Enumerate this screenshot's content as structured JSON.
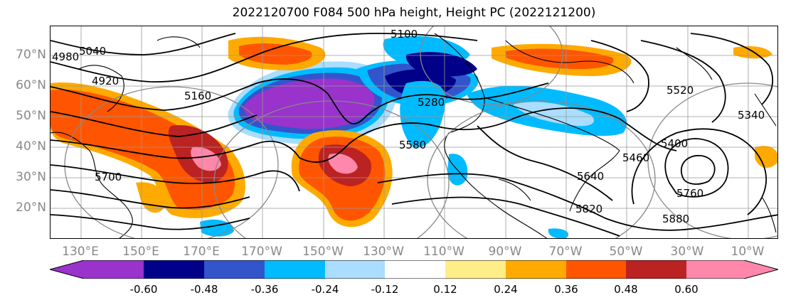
{
  "title": "2022120700 F084 500 hPa height, Height PC (2022121200)",
  "lat_labels": [
    "70°N",
    "60°N",
    "50°N",
    "40°N",
    "30°N",
    "20°N"
  ],
  "lon_labels": [
    "130°E",
    "150°E",
    "170°E",
    "170°W",
    "150°W",
    "130°W",
    "110°W",
    "90°W",
    "70°W",
    "50°W",
    "30°W",
    "10°W"
  ],
  "colorbar": {
    "colors": [
      "#9933cc",
      "#000088",
      "#3355cc",
      "#00bbff",
      "#aaddff",
      "#ffffff",
      "#ffee88",
      "#ffaa00",
      "#ff5500",
      "#bb2222",
      "#ff88aa"
    ],
    "labels": [
      "-0.60",
      "-0.48",
      "-0.36",
      "-0.24",
      "-0.12",
      "0.12",
      "0.24",
      "0.36",
      "0.48",
      "0.60"
    ]
  },
  "contour_labels": [
    "5100",
    "5040",
    "4920",
    "4980",
    "5160",
    "5280",
    "5400",
    "5520",
    "5460",
    "5580",
    "5640",
    "5700",
    "5760",
    "5820",
    "5880",
    "5340"
  ]
}
